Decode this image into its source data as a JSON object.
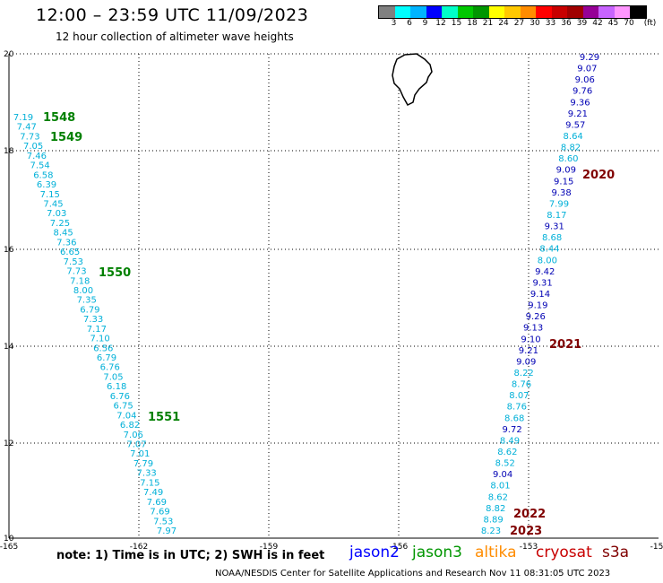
{
  "header": {
    "title": "12:00 – 23:59 UTC 11/09/2023",
    "subtitle": "12 hour collection of altimeter wave heights"
  },
  "legend": {
    "colors": [
      "#808080",
      "#00ffff",
      "#00b4ff",
      "#0000ff",
      "#00ffc8",
      "#00c800",
      "#009600",
      "#ffff00",
      "#ffc800",
      "#ff8c00",
      "#ff0000",
      "#c80000",
      "#a00000",
      "#960096",
      "#c864ff",
      "#ff96ff",
      "#000000"
    ],
    "ticks": [
      "3",
      "6",
      "9",
      "12",
      "15",
      "18",
      "21",
      "24",
      "27",
      "30",
      "33",
      "36",
      "39",
      "42",
      "45",
      "70"
    ],
    "unit": "(ft)"
  },
  "axes": {
    "x_ticks": [
      "-165",
      "-162",
      "-159",
      "-156",
      "-153",
      "-15"
    ],
    "y_ticks": [
      "20",
      "18",
      "16",
      "14",
      "12",
      "10"
    ]
  },
  "tracks": [
    {
      "color": "#00b0d8",
      "values": [
        "7.19",
        "7.47",
        "7.73",
        "7.05",
        "7.46",
        "7.54",
        "6.58",
        "6.39",
        "7.15",
        "7.45",
        "7.03",
        "7.25",
        "8.45",
        "7.36",
        "6.65",
        "7.53",
        "7.73",
        "7.18",
        "8.00",
        "7.35",
        "6.79",
        "7.33",
        "7.17",
        "7.10",
        "6.56",
        "6.79",
        "6.76",
        "7.05",
        "6.18",
        "6.76",
        "6.75",
        "7.04",
        "6.82",
        "7.06",
        "7.07",
        "7.01",
        "7.79",
        "7.33",
        "7.15",
        "7.49",
        "7.69",
        "7.69",
        "7.53",
        "7.97"
      ]
    },
    {
      "color": "#00b0d8",
      "values": [
        "8.23",
        "8.89",
        "8.82",
        "8.62",
        "8.01",
        "9.04",
        "8.52",
        "8.62",
        "8.49",
        "9.72",
        "8.68",
        "8.76",
        "8.07",
        "8.76",
        "8.22",
        "9.09",
        "9.21",
        "9.10",
        "9.13",
        "9.26",
        "9.19",
        "9.14",
        "9.31",
        "9.42",
        "8.00",
        "8.44",
        "8.68",
        "9.31",
        "8.17",
        "7.99",
        "9.38",
        "9.15",
        "9.09",
        "8.60",
        "8.82",
        "8.64",
        "9.57",
        "9.21",
        "9.36",
        "9.76",
        "9.06",
        "9.07",
        "9.29"
      ]
    }
  ],
  "pass_labels": [
    {
      "text": "1548",
      "color": "#008000"
    },
    {
      "text": "1549",
      "color": "#008000"
    },
    {
      "text": "1550",
      "color": "#008000"
    },
    {
      "text": "1551",
      "color": "#008000"
    },
    {
      "text": "2020",
      "color": "#800000"
    },
    {
      "text": "2021",
      "color": "#800000"
    },
    {
      "text": "2022",
      "color": "#800000"
    },
    {
      "text": "2023",
      "color": "#800000"
    }
  ],
  "footer": {
    "note": "note: 1) Time is in UTC; 2) SWH is in feet",
    "satellites": [
      {
        "name": "jason2",
        "color": "#0000ff"
      },
      {
        "name": "jason3",
        "color": "#009600"
      },
      {
        "name": "altika",
        "color": "#ff8c00"
      },
      {
        "name": "cryosat",
        "color": "#c80000"
      },
      {
        "name": "s3a",
        "color": "#800000"
      }
    ],
    "credit": "NOAA/NESDIS Center for Satellite Applications and Research   Nov 11 08:31:05 UTC 2023"
  }
}
